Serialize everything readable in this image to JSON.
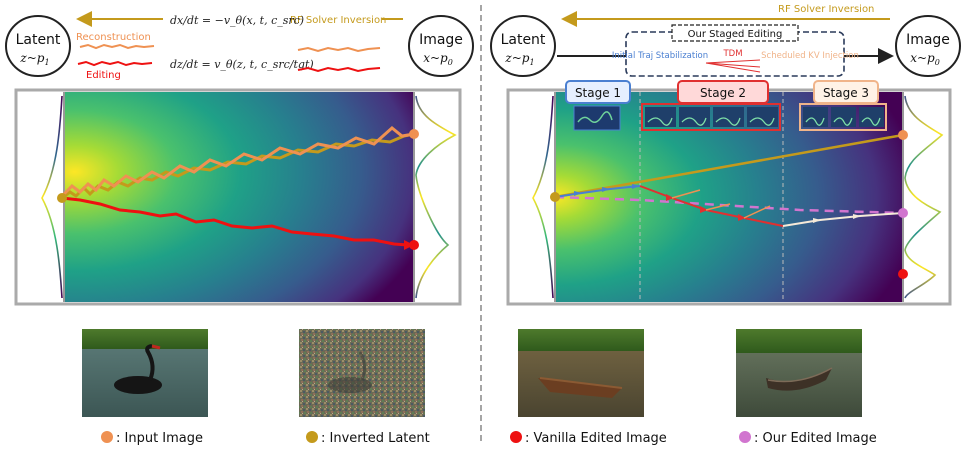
{
  "left_panel": {
    "latent_title": "Latent",
    "latent_dist": "z~p",
    "latent_sub": "1",
    "image_title": "Image",
    "image_dist": "x~p",
    "image_sub": "0",
    "inversion_label": "RF Solver Inversion",
    "reconstruction_label": "Reconstruction",
    "editing_label": "Editing",
    "eq_inversion": "dx/dt = −v_θ(x, t, c_src)",
    "eq_editing": "dz/dt = v_θ(z, t, c_src/tgt)"
  },
  "right_panel": {
    "latent_title": "Latent",
    "latent_dist": "z~p",
    "latent_sub": "1",
    "image_title": "Image",
    "image_dist": "x~p",
    "image_sub": "0",
    "inversion_label": "RF Solver Inversion",
    "staged_title": "Our Staged Editing",
    "stage_items": [
      "Initial Traj Stabilization",
      "TDM",
      "Scheduled KV Injection"
    ],
    "stages": [
      "Stage 1",
      "Stage 2",
      "Stage 3"
    ]
  },
  "legend": [
    {
      "label": ": Input Image",
      "color": "#ef9152",
      "photo": "black-swan-photo"
    },
    {
      "label": ": Inverted Latent",
      "color": "#c49a1c",
      "photo": "noisy-latent-photo"
    },
    {
      "label": ": Vanilla Edited Image",
      "color": "#ee1111",
      "photo": "vanilla-boat-photo"
    },
    {
      "label": ": Our Edited Image",
      "color": "#d175cf",
      "photo": "our-boat-photo"
    }
  ],
  "colors": {
    "reconstruction": "#ef9152",
    "editing": "#ee1111",
    "inversion": "#c49a1c",
    "ours": "#d175cf",
    "stage1": "#4a7fd1",
    "stage2": "#e03030",
    "stage3": "#f0b48a"
  }
}
